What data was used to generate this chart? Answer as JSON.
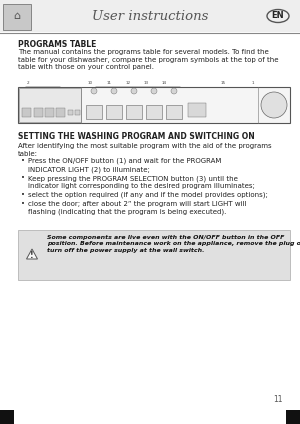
{
  "page_bg": "#ffffff",
  "header_bg": "#eeeeee",
  "header_title": "User instructions",
  "header_title_color": "#555555",
  "en_badge_text": "EN",
  "page_number": "11",
  "section1_title": "PROGRAMS TABLE",
  "section1_body": "The manual contains the programs table for several models. To find the\ntable for your dishwasher, compare the program symbols at the top of the\ntable with those on your control panel.",
  "section2_title": "SETTING THE WASHING PROGRAM AND SWITCHING ON",
  "section2_intro": "After identifying the most suitable program with the aid of the programs\ntable:",
  "bullet1a": "Press the ",
  "bullet1b": "ON/OFF",
  "bullet1c": " button ",
  "bullet1d": "(1)",
  "bullet1e": " and wait for the ",
  "bullet1f": "PROGRAM\nINDICATOR LIGHT",
  "bullet1g": " (2) to illuminate;",
  "bullet2a": "Keep pressing the ",
  "bullet2b": "PROGRAM SELECTION",
  "bullet2c": " button ",
  "bullet2d": "(3)",
  "bullet2e": " until the\nindicator light corresponding to the desired program illuminates;",
  "bullet3": "select the option required (if any and if the model provides options);",
  "bullet4a": "close the door; after about 2” the program will start ",
  "bullet4b": "LIGHT",
  "bullet4c": " will\nflashing (indicating that the program is being executed).",
  "warning_text_italic": "Some components are live even with the ON/OFF button in the OFF\nposition. Before maintenance work on the appliance, remove the plug or\nturn off the power supply at the wall switch.",
  "body_fs": 5.0,
  "small_fs": 4.5,
  "title_fs": 5.5,
  "header_fs": 9.5,
  "warn_bg": "#e0e0e0",
  "text_color": "#222222",
  "header_line_color": "#888888"
}
